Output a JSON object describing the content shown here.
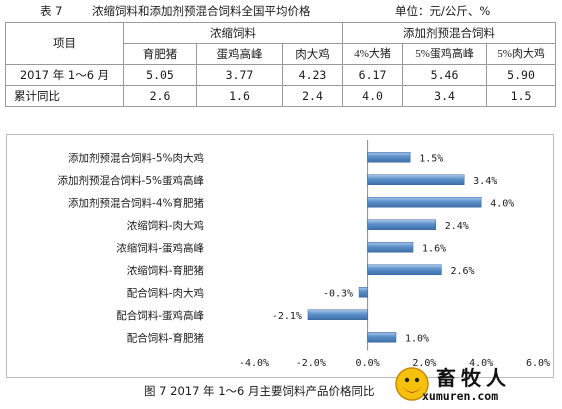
{
  "table": {
    "number": "表 7",
    "title": "浓缩饲料和添加剂预混合饲料全国平均价格",
    "unit": "单位：元/公斤、%",
    "header_item": "项目",
    "group_concentrate": "浓缩饲料",
    "group_premix": "添加剂预混合饲料",
    "columns": [
      "育肥猪",
      "蛋鸡高峰",
      "肉大鸡",
      "4%大猪",
      "5%蛋鸡高峰",
      "5%肉大鸡"
    ],
    "rows": [
      {
        "label": "2017 年 1～6 月",
        "values": [
          "5.05",
          "3.77",
          "4.23",
          "6.17",
          "5.46",
          "5.90"
        ]
      },
      {
        "label": "累计同比",
        "values": [
          "2.6",
          "1.6",
          "2.4",
          "4.0",
          "3.4",
          "1.5"
        ]
      }
    ]
  },
  "chart_data": {
    "type": "bar",
    "orientation": "horizontal",
    "categories": [
      "添加剂预混合饲料-5%肉大鸡",
      "添加剂预混合饲料-5%蛋鸡高峰",
      "添加剂预混合饲料-4%育肥猪",
      "浓缩饲料-肉大鸡",
      "浓缩饲料-蛋鸡高峰",
      "浓缩饲料-育肥猪",
      "配合饲料-肉大鸡",
      "配合饲料-蛋鸡高峰",
      "配合饲料-育肥猪"
    ],
    "values": [
      1.5,
      3.4,
      4.0,
      2.4,
      1.6,
      2.6,
      -0.3,
      -2.1,
      1.0
    ],
    "data_labels": [
      "1.5%",
      "3.4%",
      "4.0%",
      "2.4%",
      "1.6%",
      "2.6%",
      "-0.3%",
      "-2.1%",
      "1.0%"
    ],
    "xlim": [
      -4.0,
      6.0
    ],
    "xticks": [
      -4.0,
      -2.0,
      0.0,
      2.0,
      4.0,
      6.0
    ],
    "xtick_labels": [
      "-4.0%",
      "-2.0%",
      "0.0%",
      "2.0%",
      "4.0%",
      "6.0%"
    ],
    "title": "",
    "xlabel": "",
    "ylabel": "",
    "grid": false,
    "legend": "none",
    "bar_color": "#5b8fc9"
  },
  "caption": "图 7  2017 年 1～6 月主要饲料产品价格同比",
  "watermark": {
    "brand": "畜牧人",
    "domain": "xumuren.com"
  }
}
